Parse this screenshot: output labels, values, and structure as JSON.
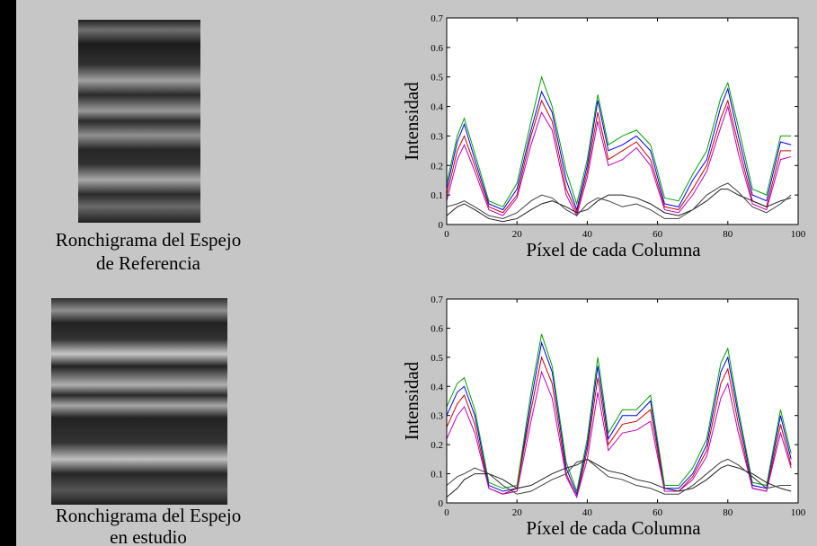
{
  "panels": [
    {
      "caption_lines": [
        "Ronchigrama del Espejo",
        "de Referencia"
      ]
    },
    {
      "caption_lines": [
        "Ronchigrama del Espejo",
        "en estudio"
      ]
    }
  ],
  "chart_data": [
    {
      "type": "line",
      "xlabel": "Píxel de cada Columna",
      "ylabel": "Intensidad",
      "xlim": [
        0,
        100
      ],
      "ylim": [
        0,
        0.7
      ],
      "xticks": [
        0,
        20,
        40,
        60,
        80,
        100
      ],
      "yticks": [
        0,
        0.1,
        0.2,
        0.3,
        0.4,
        0.5,
        0.6,
        0.7
      ],
      "x": [
        0,
        3,
        5,
        8,
        12,
        16,
        20,
        24,
        27,
        30,
        34,
        37,
        40,
        43,
        46,
        50,
        54,
        58,
        62,
        66,
        70,
        74,
        78,
        80,
        83,
        87,
        91,
        95,
        98
      ],
      "series": [
        {
          "color": "#0000ff",
          "values": [
            0.12,
            0.28,
            0.34,
            0.22,
            0.07,
            0.05,
            0.12,
            0.32,
            0.45,
            0.38,
            0.15,
            0.05,
            0.2,
            0.42,
            0.25,
            0.27,
            0.3,
            0.25,
            0.07,
            0.06,
            0.15,
            0.22,
            0.4,
            0.46,
            0.3,
            0.1,
            0.08,
            0.28,
            0.27
          ]
        },
        {
          "color": "#d00000",
          "values": [
            0.1,
            0.25,
            0.3,
            0.2,
            0.06,
            0.04,
            0.1,
            0.3,
            0.42,
            0.35,
            0.12,
            0.04,
            0.18,
            0.38,
            0.22,
            0.25,
            0.28,
            0.22,
            0.06,
            0.05,
            0.12,
            0.2,
            0.36,
            0.42,
            0.27,
            0.08,
            0.06,
            0.25,
            0.25
          ]
        },
        {
          "color": "#00a000",
          "values": [
            0.14,
            0.3,
            0.36,
            0.24,
            0.08,
            0.06,
            0.14,
            0.35,
            0.5,
            0.4,
            0.18,
            0.07,
            0.22,
            0.44,
            0.27,
            0.3,
            0.32,
            0.27,
            0.09,
            0.08,
            0.17,
            0.25,
            0.43,
            0.48,
            0.33,
            0.12,
            0.1,
            0.3,
            0.3
          ]
        },
        {
          "color": "#c000c0",
          "values": [
            0.08,
            0.22,
            0.27,
            0.18,
            0.05,
            0.03,
            0.09,
            0.27,
            0.38,
            0.32,
            0.1,
            0.03,
            0.16,
            0.35,
            0.2,
            0.22,
            0.26,
            0.2,
            0.05,
            0.04,
            0.1,
            0.18,
            0.33,
            0.4,
            0.24,
            0.07,
            0.05,
            0.22,
            0.23
          ]
        },
        {
          "color": "#202020",
          "values": [
            0.03,
            0.06,
            0.07,
            0.05,
            0.02,
            0.01,
            0.02,
            0.05,
            0.07,
            0.08,
            0.06,
            0.04,
            0.05,
            0.08,
            0.1,
            0.1,
            0.09,
            0.07,
            0.04,
            0.03,
            0.05,
            0.08,
            0.12,
            0.12,
            0.1,
            0.08,
            0.06,
            0.08,
            0.09
          ]
        },
        {
          "color": "#404040",
          "values": [
            0.06,
            0.07,
            0.08,
            0.06,
            0.03,
            0.02,
            0.04,
            0.08,
            0.1,
            0.09,
            0.05,
            0.03,
            0.07,
            0.09,
            0.08,
            0.06,
            0.07,
            0.05,
            0.02,
            0.02,
            0.05,
            0.1,
            0.13,
            0.14,
            0.11,
            0.06,
            0.04,
            0.07,
            0.1
          ]
        }
      ]
    },
    {
      "type": "line",
      "xlabel": "Píxel de cada Columna",
      "ylabel": "Intensidad",
      "xlim": [
        0,
        100
      ],
      "ylim": [
        0,
        0.7
      ],
      "xticks": [
        0,
        20,
        40,
        60,
        80,
        100
      ],
      "yticks": [
        0,
        0.1,
        0.2,
        0.3,
        0.4,
        0.5,
        0.6,
        0.7
      ],
      "x": [
        0,
        3,
        5,
        8,
        12,
        16,
        20,
        24,
        27,
        30,
        34,
        37,
        40,
        43,
        46,
        50,
        54,
        58,
        62,
        66,
        70,
        74,
        78,
        80,
        83,
        87,
        91,
        95,
        98
      ],
      "series": [
        {
          "color": "#0000ff",
          "values": [
            0.3,
            0.38,
            0.4,
            0.3,
            0.06,
            0.04,
            0.05,
            0.35,
            0.55,
            0.45,
            0.12,
            0.03,
            0.2,
            0.47,
            0.22,
            0.3,
            0.3,
            0.35,
            0.05,
            0.05,
            0.1,
            0.2,
            0.45,
            0.5,
            0.3,
            0.06,
            0.05,
            0.3,
            0.15
          ]
        },
        {
          "color": "#d00000",
          "values": [
            0.26,
            0.34,
            0.37,
            0.27,
            0.05,
            0.03,
            0.05,
            0.32,
            0.5,
            0.41,
            0.1,
            0.02,
            0.18,
            0.43,
            0.2,
            0.27,
            0.28,
            0.32,
            0.04,
            0.04,
            0.09,
            0.18,
            0.41,
            0.46,
            0.27,
            0.05,
            0.04,
            0.27,
            0.13
          ]
        },
        {
          "color": "#00a000",
          "values": [
            0.33,
            0.41,
            0.43,
            0.32,
            0.07,
            0.05,
            0.06,
            0.38,
            0.58,
            0.47,
            0.14,
            0.04,
            0.22,
            0.5,
            0.24,
            0.32,
            0.32,
            0.37,
            0.06,
            0.06,
            0.12,
            0.22,
            0.48,
            0.53,
            0.32,
            0.07,
            0.06,
            0.32,
            0.17
          ]
        },
        {
          "color": "#c000c0",
          "values": [
            0.22,
            0.3,
            0.33,
            0.24,
            0.05,
            0.03,
            0.04,
            0.28,
            0.45,
            0.36,
            0.09,
            0.02,
            0.15,
            0.38,
            0.18,
            0.24,
            0.25,
            0.28,
            0.04,
            0.04,
            0.08,
            0.16,
            0.36,
            0.41,
            0.24,
            0.05,
            0.04,
            0.24,
            0.12
          ]
        },
        {
          "color": "#202020",
          "values": [
            0.02,
            0.05,
            0.08,
            0.1,
            0.1,
            0.08,
            0.05,
            0.06,
            0.08,
            0.1,
            0.12,
            0.13,
            0.15,
            0.13,
            0.11,
            0.1,
            0.08,
            0.07,
            0.05,
            0.04,
            0.05,
            0.08,
            0.12,
            0.13,
            0.12,
            0.1,
            0.07,
            0.05,
            0.04
          ]
        },
        {
          "color": "#404040",
          "values": [
            0.06,
            0.09,
            0.1,
            0.12,
            0.1,
            0.06,
            0.03,
            0.04,
            0.06,
            0.08,
            0.1,
            0.14,
            0.15,
            0.12,
            0.09,
            0.08,
            0.06,
            0.05,
            0.03,
            0.03,
            0.06,
            0.1,
            0.14,
            0.15,
            0.13,
            0.09,
            0.05,
            0.06,
            0.06
          ]
        }
      ]
    }
  ]
}
